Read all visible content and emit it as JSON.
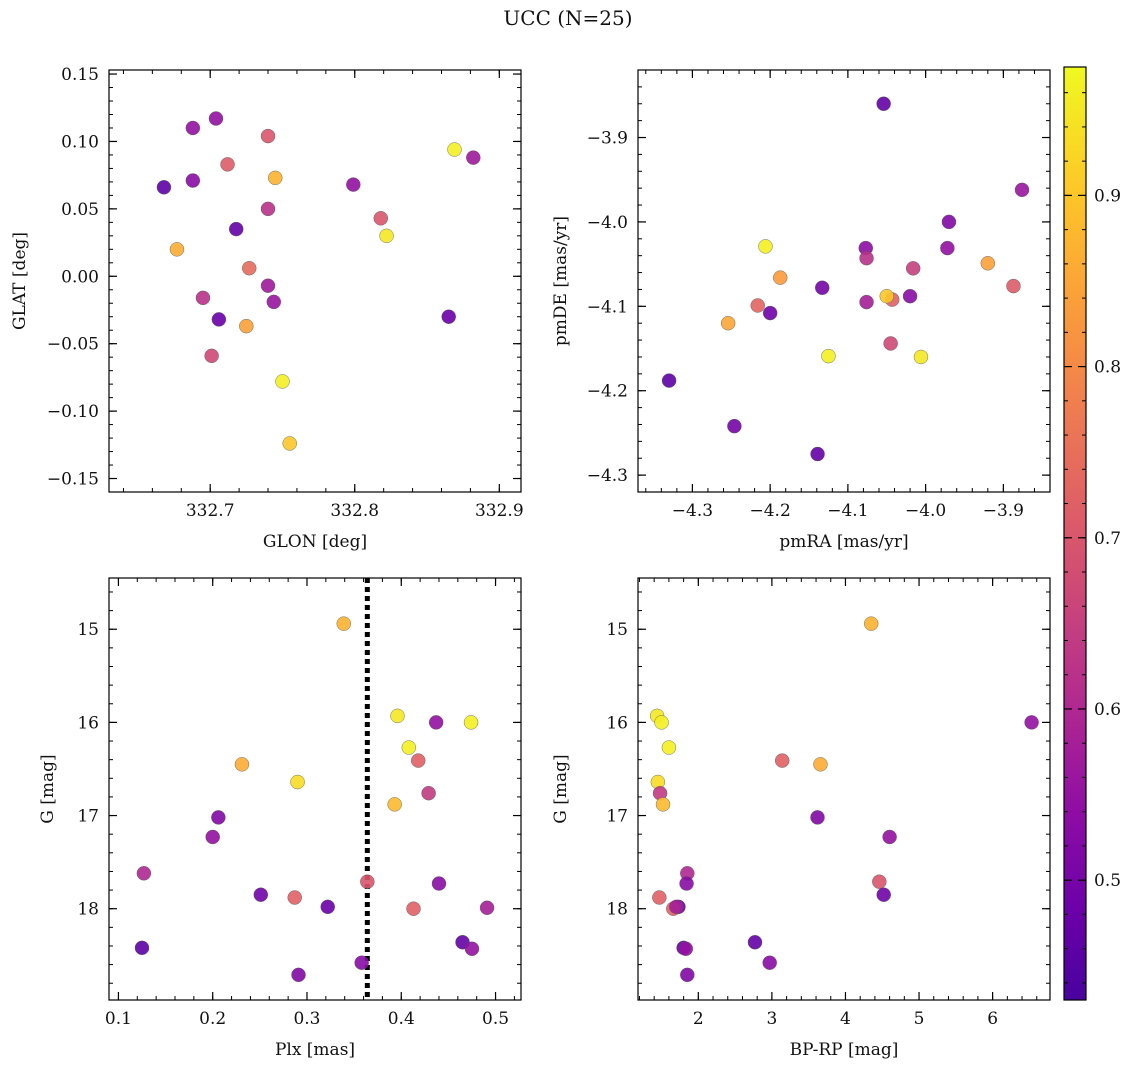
{
  "figure": {
    "title": "UCC (N=25)"
  },
  "colorbar": {
    "min": 0.43,
    "max": 0.975,
    "ticks": [
      0.5,
      0.6,
      0.7,
      0.8,
      0.9
    ],
    "tick_labels": [
      "0.5",
      "0.6",
      "0.7",
      "0.8",
      "0.9"
    ],
    "colormap": "plasma"
  },
  "chart_data": [
    {
      "id": "glon-glat",
      "type": "scatter",
      "title": "",
      "xlabel": "GLON [deg]",
      "ylabel": "GLAT [deg]",
      "xlim": [
        332.63,
        332.915
      ],
      "ylim": [
        -0.16,
        0.153
      ],
      "xticks": [
        332.7,
        332.8,
        332.9
      ],
      "xtick_labels": [
        "332.7",
        "332.8",
        "332.9"
      ],
      "yticks": [
        0.15,
        0.1,
        0.05,
        0.0,
        -0.05,
        -0.1,
        -0.15
      ],
      "ytick_labels": [
        "0.15",
        "0.10",
        "0.05",
        "0.00",
        "−0.05",
        "−0.10",
        "−0.15"
      ],
      "invert_y": false,
      "x": [
        332.668,
        332.677,
        332.688,
        332.688,
        332.695,
        332.704,
        332.706,
        332.712,
        332.718,
        332.725,
        332.727,
        332.74,
        332.74,
        332.74,
        332.744,
        332.745,
        332.75,
        332.755,
        332.799,
        332.818,
        332.822,
        332.865,
        332.869,
        332.882,
        332.701
      ],
      "y": [
        0.066,
        0.02,
        0.11,
        0.071,
        -0.016,
        0.117,
        -0.032,
        0.083,
        0.035,
        -0.037,
        0.006,
        0.104,
        0.05,
        -0.007,
        -0.019,
        0.073,
        -0.078,
        -0.124,
        0.068,
        0.043,
        0.03,
        -0.03,
        0.094,
        0.088,
        -0.059
      ],
      "color_values": [
        0.46,
        0.86,
        0.55,
        0.53,
        0.62,
        0.55,
        0.48,
        0.71,
        0.47,
        0.84,
        0.74,
        0.7,
        0.62,
        0.57,
        0.56,
        0.87,
        0.96,
        0.9,
        0.55,
        0.7,
        0.95,
        0.48,
        0.96,
        0.57,
        0.67
      ]
    },
    {
      "id": "pm",
      "type": "scatter",
      "title": "",
      "xlabel": "pmRA [mas/yr]",
      "ylabel": "pmDE [mas/yr]",
      "xlim": [
        -4.37,
        -3.84
      ],
      "ylim": [
        -4.32,
        -3.82
      ],
      "xticks": [
        -4.3,
        -4.2,
        -4.1,
        -4.0,
        -3.9
      ],
      "xtick_labels": [
        "−4.3",
        "−4.2",
        "−4.1",
        "−4.0",
        "−3.9"
      ],
      "yticks": [
        -3.9,
        -4.0,
        -4.1,
        -4.2,
        -4.3
      ],
      "ytick_labels": [
        "−3.9",
        "−4.0",
        "−4.1",
        "−4.2",
        "−4.3"
      ],
      "invert_y": false,
      "x": [
        -4.054,
        -3.876,
        -3.97,
        -3.972,
        -4.077,
        -4.076,
        -4.016,
        -4.206,
        -4.187,
        -4.133,
        -4.02,
        -4.076,
        -4.043,
        -4.05,
        -3.92,
        -3.887,
        -4.216,
        -4.2,
        -4.254,
        -4.125,
        -4.045,
        -4.006,
        -4.33,
        -4.246,
        -4.139
      ],
      "y": [
        -3.86,
        -3.962,
        -4.0,
        -4.031,
        -4.031,
        -4.043,
        -4.055,
        -4.029,
        -4.066,
        -4.078,
        -4.088,
        -4.095,
        -4.092,
        -4.088,
        -4.049,
        -4.076,
        -4.099,
        -4.108,
        -4.12,
        -4.159,
        -4.144,
        -4.16,
        -4.188,
        -4.242,
        -4.275
      ],
      "color_values": [
        0.47,
        0.56,
        0.52,
        0.55,
        0.54,
        0.62,
        0.65,
        0.96,
        0.83,
        0.5,
        0.53,
        0.58,
        0.72,
        0.9,
        0.84,
        0.71,
        0.73,
        0.49,
        0.85,
        0.96,
        0.67,
        0.95,
        0.46,
        0.5,
        0.47
      ]
    },
    {
      "id": "plx-g",
      "type": "scatter",
      "title": "",
      "xlabel": "Plx [mas]",
      "ylabel": "G [mag]",
      "xlim": [
        0.09,
        0.527
      ],
      "ylim": [
        18.98,
        14.45
      ],
      "xticks": [
        0.1,
        0.2,
        0.3,
        0.4,
        0.5
      ],
      "xtick_labels": [
        "0.1",
        "0.2",
        "0.3",
        "0.4",
        "0.5"
      ],
      "yticks": [
        15,
        16,
        17,
        18
      ],
      "ytick_labels": [
        "15",
        "16",
        "17",
        "18"
      ],
      "invert_y": true,
      "vline": {
        "x": 0.364,
        "style": "dotted"
      },
      "x": [
        0.125,
        0.127,
        0.2,
        0.206,
        0.231,
        0.251,
        0.287,
        0.29,
        0.291,
        0.322,
        0.339,
        0.358,
        0.364,
        0.393,
        0.396,
        0.408,
        0.413,
        0.418,
        0.429,
        0.437,
        0.44,
        0.465,
        0.474,
        0.475,
        0.491
      ],
      "y": [
        18.42,
        17.62,
        17.23,
        17.02,
        16.45,
        17.85,
        17.88,
        16.64,
        18.71,
        17.98,
        14.94,
        18.58,
        17.71,
        16.88,
        15.93,
        16.27,
        18.0,
        16.41,
        16.76,
        16.0,
        17.73,
        18.36,
        16.0,
        18.43,
        17.99
      ],
      "color_values": [
        0.46,
        0.6,
        0.55,
        0.52,
        0.86,
        0.49,
        0.72,
        0.93,
        0.52,
        0.48,
        0.87,
        0.53,
        0.7,
        0.88,
        0.95,
        0.96,
        0.72,
        0.72,
        0.64,
        0.55,
        0.53,
        0.47,
        0.96,
        0.55,
        0.58
      ]
    },
    {
      "id": "bprp-g",
      "type": "scatter",
      "title": "",
      "xlabel": "BP-RP [mag]",
      "ylabel": "G [mag]",
      "xlim": [
        1.18,
        6.78
      ],
      "ylim": [
        18.98,
        14.45
      ],
      "xticks": [
        2,
        3,
        4,
        5,
        6
      ],
      "xtick_labels": [
        "2",
        "3",
        "4",
        "5",
        "6"
      ],
      "yticks": [
        15,
        16,
        17,
        18
      ],
      "ytick_labels": [
        "15",
        "16",
        "17",
        "18"
      ],
      "invert_y": true,
      "x": [
        4.35,
        1.44,
        1.5,
        1.6,
        1.45,
        1.48,
        1.52,
        3.14,
        3.66,
        3.62,
        4.6,
        1.85,
        1.84,
        1.47,
        1.73,
        1.66,
        4.46,
        4.52,
        1.8,
        1.83,
        2.77,
        2.97,
        1.85,
        6.53,
        1.7
      ],
      "y": [
        14.94,
        15.93,
        16.0,
        16.27,
        16.64,
        16.76,
        16.88,
        16.41,
        16.45,
        17.02,
        17.23,
        17.62,
        17.73,
        17.88,
        17.98,
        18.0,
        17.71,
        17.85,
        18.42,
        18.43,
        18.36,
        18.58,
        18.71,
        16.0,
        17.98
      ],
      "color_values": [
        0.87,
        0.95,
        0.96,
        0.96,
        0.93,
        0.64,
        0.88,
        0.72,
        0.86,
        0.52,
        0.55,
        0.6,
        0.53,
        0.72,
        0.48,
        0.72,
        0.7,
        0.49,
        0.46,
        0.55,
        0.47,
        0.53,
        0.52,
        0.55,
        0.58
      ]
    }
  ]
}
